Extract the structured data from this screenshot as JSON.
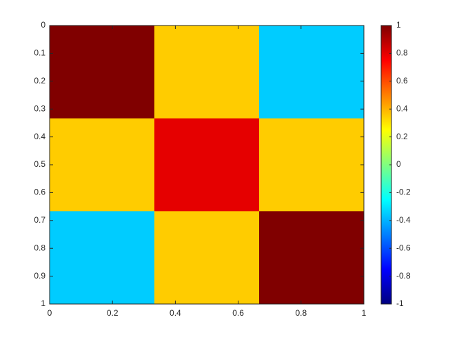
{
  "chart_data": {
    "type": "heatmap",
    "values": [
      [
        1,
        0.35,
        -0.35
      ],
      [
        0.35,
        0.8,
        0.35
      ],
      [
        -0.35,
        0.35,
        1
      ]
    ],
    "colormap": "jet",
    "xlim": [
      0,
      1
    ],
    "xticks": [
      0,
      0.2,
      0.4,
      0.6,
      0.8,
      1
    ],
    "ylim": [
      0,
      1
    ],
    "yticks": [
      0,
      0.1,
      0.2,
      0.3,
      0.4,
      0.5,
      0.6,
      0.7,
      0.8,
      0.9,
      1
    ],
    "y_reversed": true,
    "colorbar_lim": [
      -1,
      1
    ],
    "colorbar_ticks": [
      -1,
      -0.8,
      -0.6,
      -0.4,
      -0.2,
      0,
      0.2,
      0.4,
      0.6,
      0.8,
      1
    ]
  }
}
